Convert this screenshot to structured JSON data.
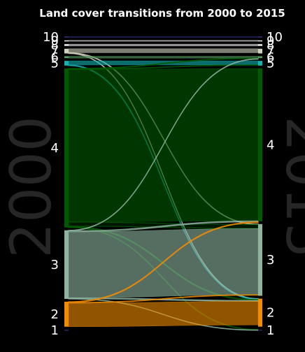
{
  "chart_data": {
    "type": "alluvial",
    "title": "Land cover transitions from 2000 to 2015",
    "left_label": "2000",
    "right_label": "2015",
    "classes": [
      {
        "id": "1",
        "color": "#1e1e46"
      },
      {
        "id": "2",
        "color": "#f28c00"
      },
      {
        "id": "3",
        "color": "#8fb5a1"
      },
      {
        "id": "4",
        "color": "#005a00"
      },
      {
        "id": "5",
        "color": "#14b4b4"
      },
      {
        "id": "6",
        "color": "#5aa064"
      },
      {
        "id": "7",
        "color": "#d2d2be"
      },
      {
        "id": "8",
        "color": "#e6e6e6"
      },
      {
        "id": "9",
        "color": "#eeeeee"
      },
      {
        "id": "10",
        "color": "#2a2a6a"
      }
    ],
    "totals_2000": [
      0.5,
      8.0,
      22.0,
      51.0,
      1.5,
      0.6,
      1.5,
      0.6,
      0.3,
      0.4
    ],
    "totals_2015": [
      0.5,
      9.0,
      23.0,
      49.0,
      1.5,
      0.6,
      1.5,
      0.6,
      0.3,
      0.4
    ],
    "flows": [
      {
        "from": "2",
        "to": "2",
        "value": 7.6
      },
      {
        "from": "2",
        "to": "3",
        "value": 0.15
      },
      {
        "from": "2",
        "to": "4",
        "value": 0.25
      },
      {
        "from": "3",
        "to": "1",
        "value": 0.1
      },
      {
        "from": "3",
        "to": "2",
        "value": 0.25
      },
      {
        "from": "3",
        "to": "3",
        "value": 21.2
      },
      {
        "from": "3",
        "to": "4",
        "value": 0.3
      },
      {
        "from": "3",
        "to": "6",
        "value": 0.15
      },
      {
        "from": "4",
        "to": "1",
        "value": 0.15
      },
      {
        "from": "4",
        "to": "2",
        "value": 0.3
      },
      {
        "from": "4",
        "to": "3",
        "value": 1.3
      },
      {
        "from": "4",
        "to": "4",
        "value": 48.9
      },
      {
        "from": "4",
        "to": "5",
        "value": 0.15
      },
      {
        "from": "4",
        "to": "6",
        "value": 0.2
      },
      {
        "from": "5",
        "to": "2",
        "value": 0.2
      },
      {
        "from": "5",
        "to": "5",
        "value": 1.3
      },
      {
        "from": "6",
        "to": "6",
        "value": 0.6
      },
      {
        "from": "7",
        "to": "2",
        "value": 0.1
      },
      {
        "from": "7",
        "to": "3",
        "value": 0.15
      },
      {
        "from": "7",
        "to": "7",
        "value": 1.25
      },
      {
        "from": "8",
        "to": "8",
        "value": 0.6
      },
      {
        "from": "9",
        "to": "9",
        "value": 0.3
      },
      {
        "from": "10",
        "to": "10",
        "value": 0.4
      }
    ],
    "grid": false,
    "legend": "none"
  }
}
